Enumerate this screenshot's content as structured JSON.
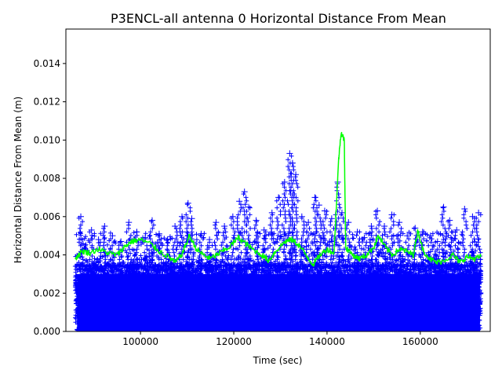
{
  "chart_data": {
    "type": "scatter",
    "title": "P3ENCL-all antenna 0 Horizontal Distance From Mean",
    "xlabel": "Time (sec)",
    "ylabel": "Horizontal Distance From Mean (m)",
    "xlim": [
      84000,
      175000
    ],
    "ylim": [
      0,
      0.0158
    ],
    "x_ticks": [
      100000,
      120000,
      140000,
      160000
    ],
    "x_tick_labels": [
      "100000",
      "120000",
      "140000",
      "160000"
    ],
    "y_ticks": [
      0,
      0.002,
      0.004,
      0.006,
      0.008,
      0.01,
      0.012,
      0.014
    ],
    "y_tick_labels": [
      "0.000",
      "0.002",
      "0.004",
      "0.006",
      "0.008",
      "0.010",
      "0.012",
      "0.014"
    ],
    "grid": false,
    "legend": "none",
    "colors": {
      "points": "#0000ff",
      "line": "#00ff00"
    },
    "series": [
      {
        "style": "markers (+)",
        "description_of_range": "dense cloud from 86000 to 173000 s filling 0 to ~0.0035 m",
        "outliers": [
          {
            "x": 87200,
            "y": 0.006
          },
          {
            "x": 89500,
            "y": 0.0053
          },
          {
            "x": 91000,
            "y": 0.0048
          },
          {
            "x": 92300,
            "y": 0.0055
          },
          {
            "x": 94000,
            "y": 0.005
          },
          {
            "x": 95800,
            "y": 0.0047
          },
          {
            "x": 97500,
            "y": 0.0057
          },
          {
            "x": 99200,
            "y": 0.0052
          },
          {
            "x": 101000,
            "y": 0.0049
          },
          {
            "x": 102500,
            "y": 0.0058
          },
          {
            "x": 104000,
            "y": 0.0051
          },
          {
            "x": 105800,
            "y": 0.0048
          },
          {
            "x": 107400,
            "y": 0.0055
          },
          {
            "x": 108900,
            "y": 0.006
          },
          {
            "x": 110200,
            "y": 0.0067
          },
          {
            "x": 111000,
            "y": 0.0059
          },
          {
            "x": 113000,
            "y": 0.0051
          },
          {
            "x": 114800,
            "y": 0.0048
          },
          {
            "x": 116200,
            "y": 0.0057
          },
          {
            "x": 118000,
            "y": 0.0055
          },
          {
            "x": 119800,
            "y": 0.006
          },
          {
            "x": 121200,
            "y": 0.0068
          },
          {
            "x": 122300,
            "y": 0.0073
          },
          {
            "x": 123200,
            "y": 0.0065
          },
          {
            "x": 124800,
            "y": 0.0058
          },
          {
            "x": 126500,
            "y": 0.0053
          },
          {
            "x": 128200,
            "y": 0.0062
          },
          {
            "x": 129600,
            "y": 0.007
          },
          {
            "x": 130900,
            "y": 0.0078
          },
          {
            "x": 132000,
            "y": 0.0093
          },
          {
            "x": 132600,
            "y": 0.0088
          },
          {
            "x": 133300,
            "y": 0.0082
          },
          {
            "x": 134600,
            "y": 0.006
          },
          {
            "x": 136000,
            "y": 0.0057
          },
          {
            "x": 137400,
            "y": 0.007
          },
          {
            "x": 138300,
            "y": 0.0066
          },
          {
            "x": 139500,
            "y": 0.0063
          },
          {
            "x": 141000,
            "y": 0.0059
          },
          {
            "x": 142300,
            "y": 0.0078
          },
          {
            "x": 143200,
            "y": 0.0062
          },
          {
            "x": 144600,
            "y": 0.0057
          },
          {
            "x": 146500,
            "y": 0.0052
          },
          {
            "x": 148000,
            "y": 0.0049
          },
          {
            "x": 149500,
            "y": 0.0055
          },
          {
            "x": 150800,
            "y": 0.0063
          },
          {
            "x": 152300,
            "y": 0.0055
          },
          {
            "x": 153900,
            "y": 0.0061
          },
          {
            "x": 155500,
            "y": 0.0057
          },
          {
            "x": 157200,
            "y": 0.005
          },
          {
            "x": 158900,
            "y": 0.0054
          },
          {
            "x": 160500,
            "y": 0.0052
          },
          {
            "x": 162200,
            "y": 0.005
          },
          {
            "x": 163700,
            "y": 0.0047
          },
          {
            "x": 165000,
            "y": 0.0065
          },
          {
            "x": 166300,
            "y": 0.0058
          },
          {
            "x": 167800,
            "y": 0.0053
          },
          {
            "x": 169500,
            "y": 0.0064
          },
          {
            "x": 171200,
            "y": 0.006
          },
          {
            "x": 172500,
            "y": 0.0062
          }
        ]
      },
      {
        "style": "line",
        "points": [
          [
            86000,
            0.0038
          ],
          [
            87500,
            0.0042
          ],
          [
            89000,
            0.0041
          ],
          [
            91000,
            0.0043
          ],
          [
            93000,
            0.0041
          ],
          [
            95000,
            0.004
          ],
          [
            96500,
            0.0044
          ],
          [
            98000,
            0.0047
          ],
          [
            100000,
            0.0048
          ],
          [
            102000,
            0.0046
          ],
          [
            104000,
            0.0042
          ],
          [
            106000,
            0.0039
          ],
          [
            107500,
            0.0036
          ],
          [
            109000,
            0.0041
          ],
          [
            110500,
            0.005
          ],
          [
            112000,
            0.0043
          ],
          [
            113500,
            0.004
          ],
          [
            115000,
            0.0038
          ],
          [
            117000,
            0.0041
          ],
          [
            119000,
            0.0044
          ],
          [
            121000,
            0.0049
          ],
          [
            122500,
            0.0046
          ],
          [
            124000,
            0.0043
          ],
          [
            126000,
            0.004
          ],
          [
            127500,
            0.0037
          ],
          [
            129000,
            0.0042
          ],
          [
            131000,
            0.0047
          ],
          [
            132500,
            0.0048
          ],
          [
            134000,
            0.0045
          ],
          [
            135500,
            0.004
          ],
          [
            137000,
            0.0035
          ],
          [
            138500,
            0.004
          ],
          [
            140000,
            0.0043
          ],
          [
            141500,
            0.0041
          ],
          [
            142500,
            0.009
          ],
          [
            143000,
            0.0104
          ],
          [
            143700,
            0.01
          ],
          [
            144000,
            0.0044
          ],
          [
            145500,
            0.004
          ],
          [
            147000,
            0.0038
          ],
          [
            148500,
            0.004
          ],
          [
            150000,
            0.0044
          ],
          [
            151000,
            0.005
          ],
          [
            152500,
            0.0044
          ],
          [
            154000,
            0.004
          ],
          [
            155500,
            0.0043
          ],
          [
            157000,
            0.0042
          ],
          [
            158500,
            0.004
          ],
          [
            159500,
            0.0053
          ],
          [
            160500,
            0.0043
          ],
          [
            162000,
            0.0038
          ],
          [
            163500,
            0.0036
          ],
          [
            165000,
            0.0037
          ],
          [
            167000,
            0.004
          ],
          [
            168500,
            0.0036
          ],
          [
            170000,
            0.0039
          ],
          [
            171500,
            0.0038
          ],
          [
            173000,
            0.0039
          ]
        ]
      }
    ]
  }
}
